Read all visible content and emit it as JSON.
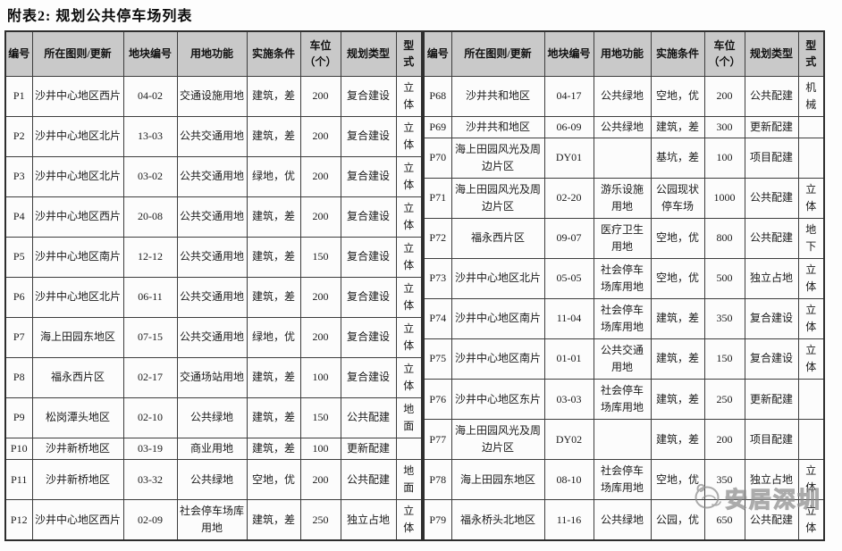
{
  "title": "附表2: 规划公共停车场列表",
  "columns": [
    "编号",
    "所在图则/更新",
    "地块编号",
    "用地功能",
    "实施条件",
    "车位\n（个）",
    "规划类型",
    "型式"
  ],
  "left_rows": [
    [
      "P1",
      "沙井中心地区西片",
      "04-02",
      "交通设施用地",
      "建筑，差",
      "200",
      "复合建设",
      "立体"
    ],
    [
      "P2",
      "沙井中心地区北片",
      "13-03",
      "公共交通用地",
      "建筑，差",
      "200",
      "复合建设",
      "立体"
    ],
    [
      "P3",
      "沙井中心地区北片",
      "03-02",
      "公共交通用地",
      "绿地，优",
      "200",
      "复合建设",
      "立体"
    ],
    [
      "P4",
      "沙井中心地区西片",
      "20-08",
      "公共交通用地",
      "建筑，差",
      "200",
      "复合建设",
      "立体"
    ],
    [
      "P5",
      "沙井中心地区南片",
      "12-12",
      "公共交通用地",
      "建筑，差",
      "150",
      "复合建设",
      "立体"
    ],
    [
      "P6",
      "沙井中心地区北片",
      "06-11",
      "公共交通用地",
      "建筑，差",
      "200",
      "复合建设",
      "立体"
    ],
    [
      "P7",
      "海上田园东地区",
      "07-15",
      "公共交通用地",
      "绿地，优",
      "200",
      "复合建设",
      "立体"
    ],
    [
      "P8",
      "福永西片区",
      "02-17",
      "交通场站用地",
      "建筑，差",
      "100",
      "复合建设",
      "立体"
    ],
    [
      "P9",
      "松岗潭头地区",
      "02-10",
      "公共绿地",
      "建筑，差",
      "150",
      "公共配建",
      "地面"
    ],
    [
      "P10",
      "沙井新桥地区",
      "03-19",
      "商业用地",
      "建筑，差",
      "100",
      "更新配建",
      ""
    ],
    [
      "P11",
      "沙井新桥地区",
      "03-32",
      "公共绿地",
      "空地，优",
      "200",
      "公共配建",
      "地面"
    ],
    [
      "P12",
      "沙井中心地区西片",
      "02-09",
      "社会停车场库用地",
      "建筑，差",
      "250",
      "独立占地",
      "立体"
    ]
  ],
  "right_rows": [
    [
      "P68",
      "沙井共和地区",
      "04-17",
      "公共绿地",
      "空地，优",
      "200",
      "公共配建",
      "机械"
    ],
    [
      "P69",
      "沙井共和地区",
      "06-09",
      "公共绿地",
      "建筑，差",
      "300",
      "更新配建",
      ""
    ],
    [
      "P70",
      "海上田园风光及周边片区",
      "DY01",
      "",
      "基坑，差",
      "100",
      "项目配建",
      ""
    ],
    [
      "P71",
      "海上田园风光及周边片区",
      "02-20",
      "游乐设施用地",
      "公园现状停车场",
      "1000",
      "公共配建",
      "立体"
    ],
    [
      "P72",
      "福永西片区",
      "09-07",
      "医疗卫生用地",
      "空地，优",
      "800",
      "公共配建",
      "地下"
    ],
    [
      "P73",
      "沙井中心地区北片",
      "05-05",
      "社会停车场库用地",
      "空地，优",
      "500",
      "独立占地",
      "立体"
    ],
    [
      "P74",
      "沙井中心地区南片",
      "11-04",
      "社会停车场库用地",
      "建筑，差",
      "350",
      "复合建设",
      "立体"
    ],
    [
      "P75",
      "沙井中心地区南片",
      "01-01",
      "公共交通用地",
      "建筑，差",
      "150",
      "复合建设",
      "立体"
    ],
    [
      "P76",
      "沙井中心地区东片",
      "03-03",
      "社会停车场库用地",
      "建筑，差",
      "250",
      "更新配建",
      ""
    ],
    [
      "P77",
      "海上田园风光及周边片区",
      "DY02",
      "",
      "建筑，差",
      "200",
      "项目配建",
      ""
    ],
    [
      "P78",
      "海上田园东地区",
      "08-10",
      "社会停车场库用地",
      "空地，优",
      "350",
      "独立占地",
      "立体"
    ],
    [
      "P79",
      "福永桥头北地区",
      "11-16",
      "公共绿地",
      "公园，优",
      "650",
      "公共配建",
      "立体"
    ]
  ],
  "watermark": {
    "text": "安居深圳",
    "logo_icon": "swan-circle-logo"
  }
}
